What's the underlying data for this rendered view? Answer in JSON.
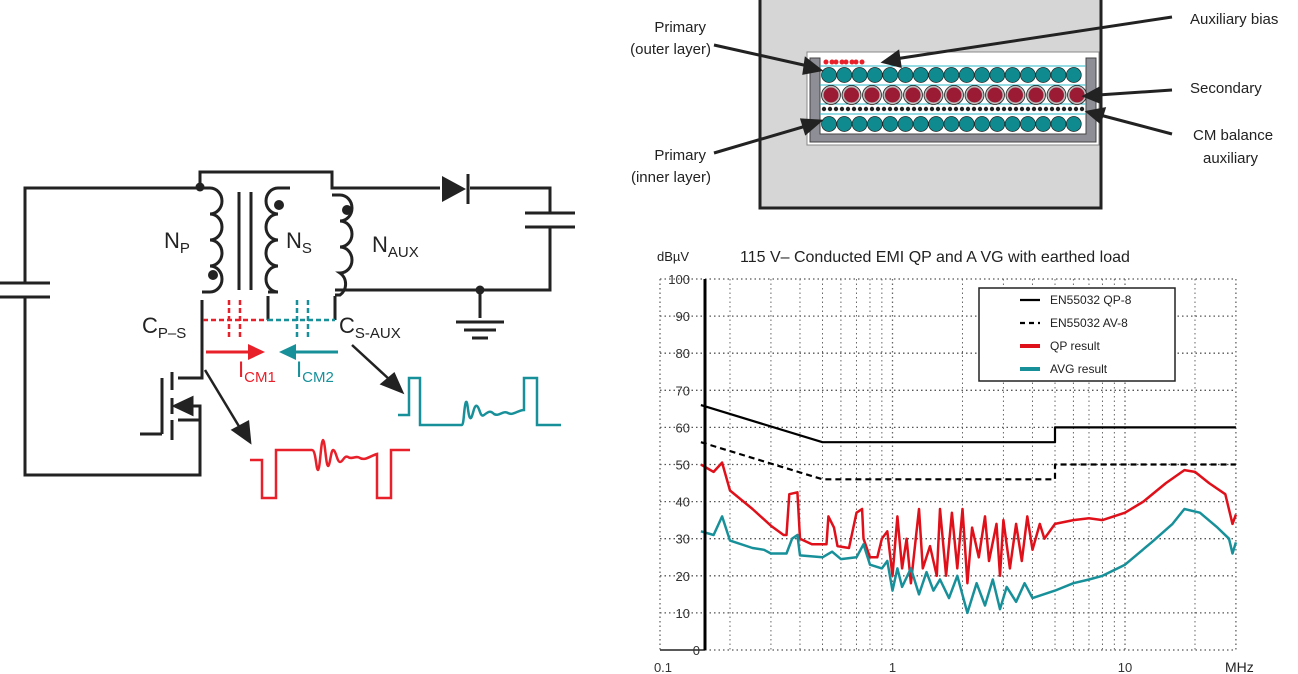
{
  "circuit": {
    "np": "N",
    "np_sub": "P",
    "ns": "N",
    "ns_sub": "S",
    "naux": "N",
    "naux_sub": "AUX",
    "cps": "C",
    "cps_sub": "P–S",
    "csaux": "C",
    "csaux_sub": "S-AUX",
    "icm1": "I",
    "icm1_sub": "CM1",
    "icm2": "I",
    "icm2_sub": "CM2",
    "colors": {
      "cm1": "#e8202a",
      "cm2": "#17909a",
      "wire": "#222222"
    }
  },
  "winding": {
    "labels": {
      "primary_outer": [
        "Primary",
        "(outer layer)"
      ],
      "primary_inner": [
        "Primary",
        "(inner layer)"
      ],
      "aux_bias": "Auxiliary bias",
      "secondary": "Secondary",
      "cm_balance": [
        "CM balance",
        "auxiliary"
      ]
    },
    "colors": {
      "primary": "#0f8a8f",
      "secondary": "#9b1b35",
      "aux_bias": "#e8202a",
      "background": "#d6d6d6",
      "bobbin": "#8e8e96"
    }
  },
  "chart_data": {
    "type": "line",
    "title": "115 V– Conducted EMI QP and A VG with earthed load",
    "ylabel": "dBµV",
    "xlabel": "MHz",
    "xscale": "log",
    "xlim": [
      0.15,
      30
    ],
    "ylim": [
      0,
      100
    ],
    "xticks": [
      "0.1",
      "1",
      "10"
    ],
    "xtick_values": [
      0.1,
      1,
      10
    ],
    "yticks": [
      0,
      10,
      20,
      30,
      40,
      50,
      60,
      70,
      80,
      90,
      100
    ],
    "grid": "dotted",
    "legend_position": "top-right",
    "series": [
      {
        "name": "EN55032 QP-8",
        "color": "#000000",
        "style": "solid",
        "points": [
          [
            0.15,
            66
          ],
          [
            0.5,
            56
          ],
          [
            5,
            56
          ],
          [
            5,
            60
          ],
          [
            30,
            60
          ]
        ]
      },
      {
        "name": "EN55032 AV-8",
        "color": "#000000",
        "style": "dashed",
        "points": [
          [
            0.15,
            56
          ],
          [
            0.5,
            46
          ],
          [
            5,
            46
          ],
          [
            5,
            50
          ],
          [
            30,
            50
          ]
        ]
      },
      {
        "name": "QP result",
        "color": "#e0101a",
        "style": "solid",
        "points": [
          [
            0.15,
            50
          ],
          [
            0.17,
            48
          ],
          [
            0.185,
            50.5
          ],
          [
            0.2,
            43
          ],
          [
            0.25,
            38
          ],
          [
            0.3,
            33.5
          ],
          [
            0.34,
            31
          ],
          [
            0.35,
            31
          ],
          [
            0.36,
            42
          ],
          [
            0.39,
            42.5
          ],
          [
            0.4,
            30
          ],
          [
            0.45,
            28.5
          ],
          [
            0.52,
            28.5
          ],
          [
            0.53,
            36
          ],
          [
            0.56,
            33
          ],
          [
            0.58,
            28
          ],
          [
            0.65,
            27.5
          ],
          [
            0.7,
            37
          ],
          [
            0.74,
            38
          ],
          [
            0.75,
            30
          ],
          [
            0.8,
            25
          ],
          [
            0.86,
            25
          ],
          [
            0.9,
            30
          ],
          [
            0.95,
            32
          ],
          [
            1.0,
            20
          ],
          [
            1.05,
            36
          ],
          [
            1.1,
            22
          ],
          [
            1.15,
            30
          ],
          [
            1.2,
            18
          ],
          [
            1.3,
            38
          ],
          [
            1.35,
            22
          ],
          [
            1.45,
            28
          ],
          [
            1.55,
            20
          ],
          [
            1.6,
            38
          ],
          [
            1.7,
            20
          ],
          [
            1.8,
            37
          ],
          [
            1.9,
            22
          ],
          [
            2.0,
            38
          ],
          [
            2.1,
            18
          ],
          [
            2.2,
            33
          ],
          [
            2.35,
            25
          ],
          [
            2.5,
            36
          ],
          [
            2.6,
            24
          ],
          [
            2.8,
            34
          ],
          [
            2.9,
            20
          ],
          [
            3.0,
            35
          ],
          [
            3.2,
            22
          ],
          [
            3.4,
            34
          ],
          [
            3.6,
            24
          ],
          [
            3.8,
            36
          ],
          [
            4.0,
            27
          ],
          [
            4.3,
            34
          ],
          [
            4.5,
            30
          ],
          [
            5,
            34
          ],
          [
            6,
            35
          ],
          [
            7,
            35.5
          ],
          [
            8,
            35
          ],
          [
            10,
            37
          ],
          [
            12,
            40
          ],
          [
            15,
            45
          ],
          [
            18,
            48.5
          ],
          [
            20,
            48
          ],
          [
            23,
            45
          ],
          [
            27,
            42
          ],
          [
            29,
            34
          ],
          [
            30,
            36.5
          ]
        ]
      },
      {
        "name": "AVG result",
        "color": "#17909a",
        "style": "solid",
        "points": [
          [
            0.15,
            32
          ],
          [
            0.17,
            31
          ],
          [
            0.185,
            36
          ],
          [
            0.2,
            29.5
          ],
          [
            0.25,
            27.5
          ],
          [
            0.28,
            27
          ],
          [
            0.3,
            26
          ],
          [
            0.35,
            26
          ],
          [
            0.37,
            30
          ],
          [
            0.39,
            31
          ],
          [
            0.4,
            25.5
          ],
          [
            0.5,
            25
          ],
          [
            0.55,
            26.5
          ],
          [
            0.6,
            24.5
          ],
          [
            0.7,
            25
          ],
          [
            0.75,
            28.5
          ],
          [
            0.8,
            23
          ],
          [
            0.9,
            22
          ],
          [
            0.95,
            24
          ],
          [
            1.0,
            16
          ],
          [
            1.05,
            22
          ],
          [
            1.1,
            17
          ],
          [
            1.2,
            22
          ],
          [
            1.3,
            15
          ],
          [
            1.4,
            21
          ],
          [
            1.5,
            16
          ],
          [
            1.6,
            19
          ],
          [
            1.75,
            14
          ],
          [
            1.9,
            20
          ],
          [
            2.1,
            10
          ],
          [
            2.3,
            18
          ],
          [
            2.5,
            12
          ],
          [
            2.7,
            19
          ],
          [
            2.9,
            11
          ],
          [
            3.1,
            17
          ],
          [
            3.4,
            13
          ],
          [
            3.7,
            18
          ],
          [
            4,
            14
          ],
          [
            5,
            16
          ],
          [
            6,
            18
          ],
          [
            7,
            19
          ],
          [
            8,
            20
          ],
          [
            10,
            23
          ],
          [
            13,
            29
          ],
          [
            16,
            34
          ],
          [
            18,
            38
          ],
          [
            21,
            37
          ],
          [
            25,
            33
          ],
          [
            28,
            30
          ],
          [
            29,
            26
          ],
          [
            30,
            29
          ]
        ]
      }
    ]
  }
}
